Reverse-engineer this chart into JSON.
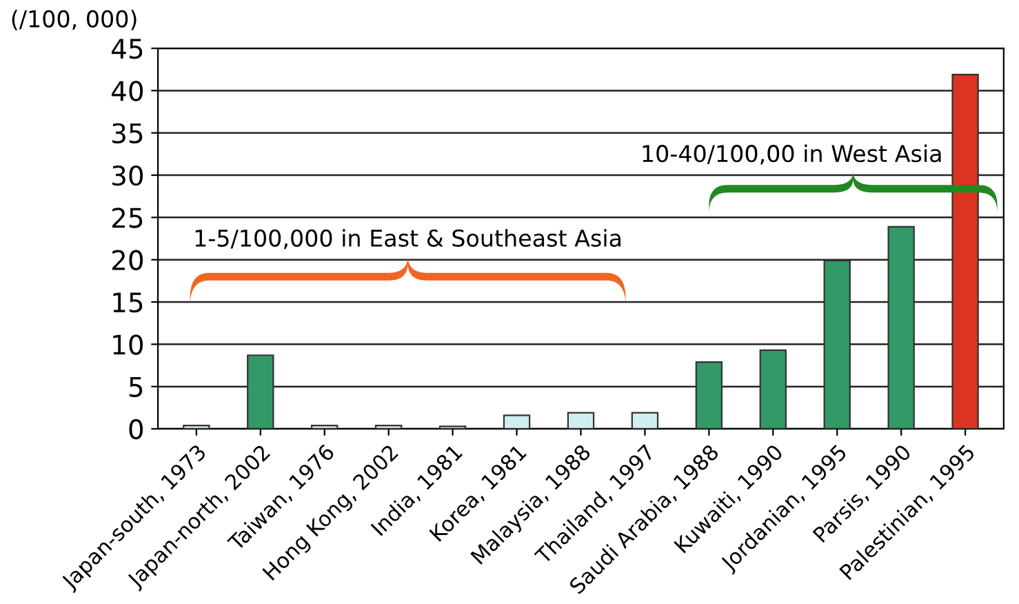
{
  "chart_data": {
    "type": "bar",
    "ylabel": "(/100, 000)",
    "categories": [
      "Japan-south, 1973",
      "Japan-north, 2002",
      "Taiwan, 1976",
      "Hong Kong, 2002",
      "India, 1981",
      "Korea, 1981",
      "Malaysia, 1988",
      "Thailand, 1997",
      "Saudi Arabia, 1988",
      "Kuwaiti, 1990",
      "Jordanian, 1995",
      "Parsis, 1990",
      "Palestinian, 1995"
    ],
    "values": [
      0.4,
      8.7,
      0.4,
      0.4,
      0.3,
      1.6,
      1.9,
      1.9,
      7.9,
      9.3,
      19.9,
      23.9,
      41.9
    ],
    "colors": [
      "#cfeeee",
      "#339966",
      "#cfeeee",
      "#cfeeee",
      "#cfeeee",
      "#cfeeee",
      "#cfeeee",
      "#cfeeee",
      "#339966",
      "#339966",
      "#339966",
      "#339966",
      "#dd3322"
    ],
    "ylim": [
      0,
      45
    ],
    "yticks": [
      0,
      5,
      10,
      15,
      20,
      25,
      30,
      35,
      40,
      45
    ],
    "grid": "y",
    "annotations": [
      "1-5/100,000 in East & Southeast Asia",
      "10-40/100,00 in West Asia"
    ]
  }
}
